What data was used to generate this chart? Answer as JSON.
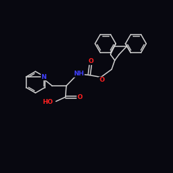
{
  "background_color": "#080810",
  "bond_color": "#d0d0d0",
  "N_color": "#4040ff",
  "O_color": "#ff2020",
  "figsize": [
    2.5,
    2.5
  ],
  "dpi": 100,
  "xlim": [
    0,
    10
  ],
  "ylim": [
    0,
    10
  ]
}
